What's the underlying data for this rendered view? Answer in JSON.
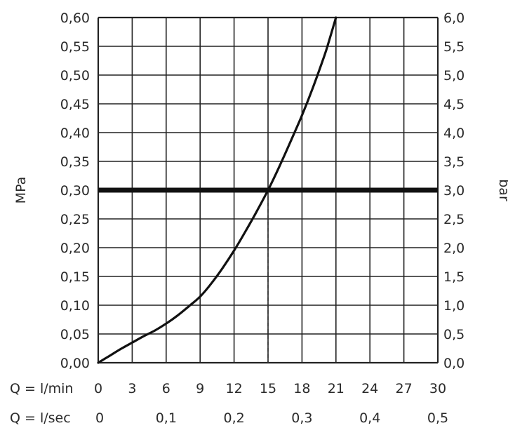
{
  "chart_data": {
    "type": "line",
    "title": "",
    "ylabel_left": "MPa",
    "ylabel_right": "bar",
    "y_left_ticks": [
      "0,00",
      "0,05",
      "0,10",
      "0,15",
      "0,20",
      "0,25",
      "0,30",
      "0,35",
      "0,40",
      "0,45",
      "0,50",
      "0,55",
      "0,60"
    ],
    "y_right_ticks": [
      "0,0",
      "0,5",
      "1,0",
      "1,5",
      "2,0",
      "2,5",
      "3,0",
      "3,5",
      "4,0",
      "4,5",
      "5,0",
      "5,5",
      "6,0"
    ],
    "ylim": [
      0,
      0.6
    ],
    "xlim": [
      0,
      30
    ],
    "x_row1_label": "Q = l/min",
    "x_row1_ticks": [
      "0",
      "3",
      "6",
      "9",
      "12",
      "15",
      "18",
      "21",
      "24",
      "27",
      "30"
    ],
    "x_row2_label": "Q = l/sec",
    "x_row2_ticks": [
      {
        "value": 0,
        "label": "0"
      },
      {
        "value": 6,
        "label": "0,1"
      },
      {
        "value": 12,
        "label": "0,2"
      },
      {
        "value": 18,
        "label": "0,3"
      },
      {
        "value": 24,
        "label": "0,4"
      },
      {
        "value": 30,
        "label": "0,5"
      }
    ],
    "grid": true,
    "reference_line": {
      "y": 0.3
    },
    "marker_line": {
      "x": 15,
      "y": 0.3
    },
    "series": [
      {
        "x": [
          0,
          1,
          2,
          3,
          4,
          5,
          6,
          7,
          8,
          9,
          10,
          11,
          12,
          13,
          14,
          15,
          16,
          17,
          18,
          19,
          20,
          20.4,
          21
        ],
        "y": [
          0.0,
          0.012,
          0.024,
          0.035,
          0.046,
          0.056,
          0.068,
          0.082,
          0.098,
          0.115,
          0.138,
          0.165,
          0.195,
          0.228,
          0.263,
          0.3,
          0.341,
          0.385,
          0.43,
          0.48,
          0.535,
          0.56,
          0.6
        ]
      }
    ]
  }
}
